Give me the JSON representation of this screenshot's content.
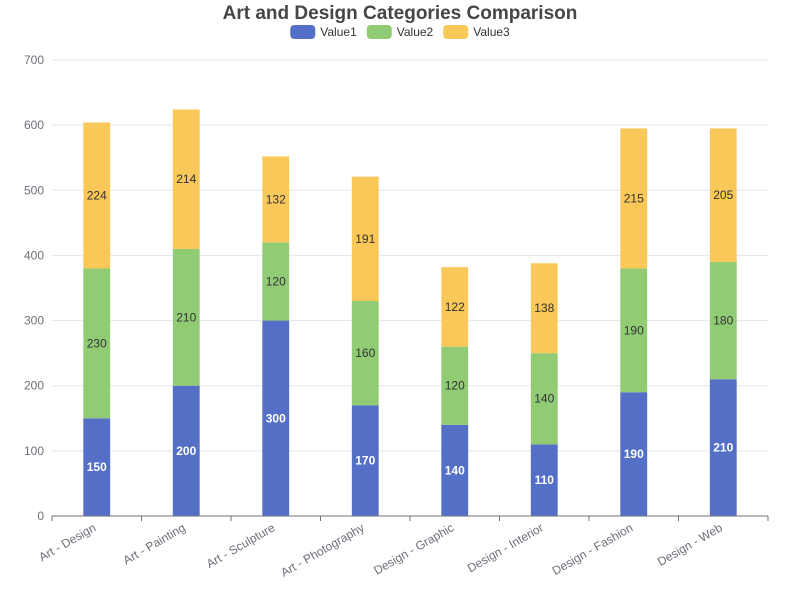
{
  "chart_data": {
    "type": "bar",
    "stacked": true,
    "title": "Art and Design Categories Comparison",
    "categories": [
      "Art - Design",
      "Art - Painting",
      "Art - Sculpture",
      "Art - Photography",
      "Design - Graphic",
      "Design - Interior",
      "Design - Fashion",
      "Design - Web"
    ],
    "series": [
      {
        "name": "Value1",
        "color": "#5470c6",
        "label_color": "#ffffff",
        "values": [
          150,
          200,
          300,
          170,
          140,
          110,
          190,
          210
        ]
      },
      {
        "name": "Value2",
        "color": "#91cc75",
        "label_color": "#333333",
        "values": [
          230,
          210,
          120,
          160,
          120,
          140,
          190,
          180
        ]
      },
      {
        "name": "Value3",
        "color": "#fac858",
        "label_color": "#333333",
        "values": [
          224,
          214,
          132,
          191,
          122,
          138,
          215,
          205
        ]
      }
    ],
    "ylim": [
      0,
      700
    ],
    "yticks": [
      0,
      100,
      200,
      300,
      400,
      500,
      600,
      700
    ],
    "grid": true,
    "legend_position": "top-center",
    "xlabel": "",
    "ylabel": ""
  }
}
